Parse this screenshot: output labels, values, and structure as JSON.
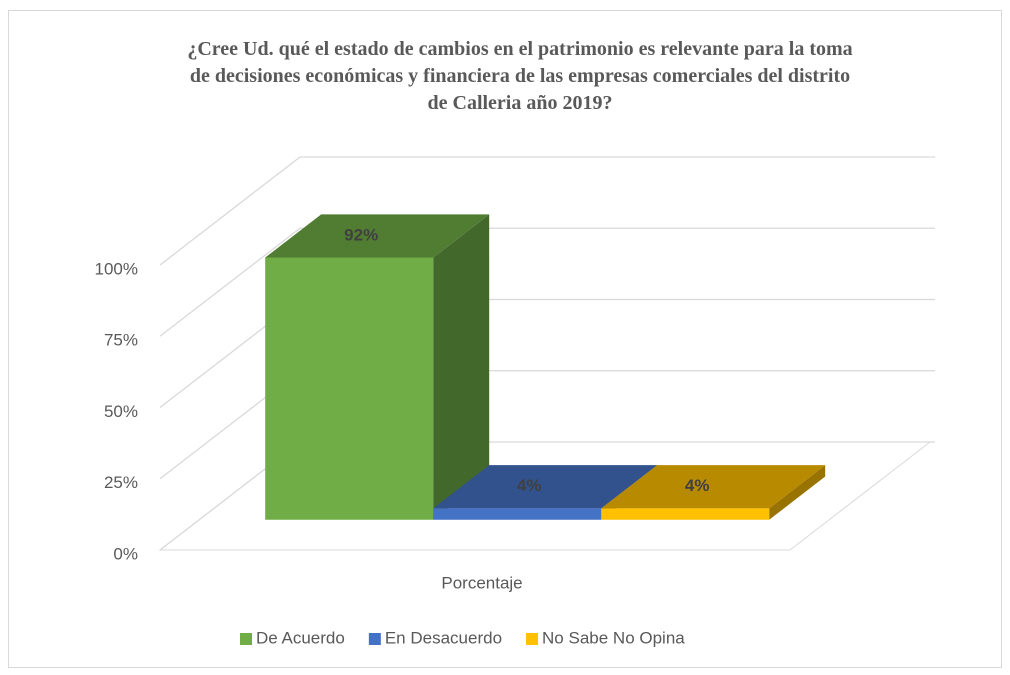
{
  "chart_data": {
    "type": "bar3d",
    "title": "¿Cree Ud. qué el estado de cambios en el patrimonio es relevante para la toma de decisiones económicas y financiera de las empresas comerciales del distrito de Calleria año 2019?",
    "categories": [
      "Porcentaje"
    ],
    "series": [
      {
        "name": "De Acuerdo",
        "color": "#70ad47",
        "values": [
          92
        ],
        "value_labels": [
          "92%"
        ]
      },
      {
        "name": "En Desacuerdo",
        "color": "#4472c4",
        "values": [
          4
        ],
        "value_labels": [
          "4%"
        ]
      },
      {
        "name": "No Sabe No Opina",
        "color": "#ffc000",
        "values": [
          4
        ],
        "value_labels": [
          "4%"
        ]
      }
    ],
    "ylim": [
      0,
      100
    ],
    "yticks": [
      {
        "value": 0,
        "label": "0%"
      },
      {
        "value": 25,
        "label": "25%"
      },
      {
        "value": 50,
        "label": "50%"
      },
      {
        "value": 75,
        "label": "75%"
      },
      {
        "value": 100,
        "label": "100%"
      }
    ],
    "grid": true,
    "legend": "bottom"
  }
}
